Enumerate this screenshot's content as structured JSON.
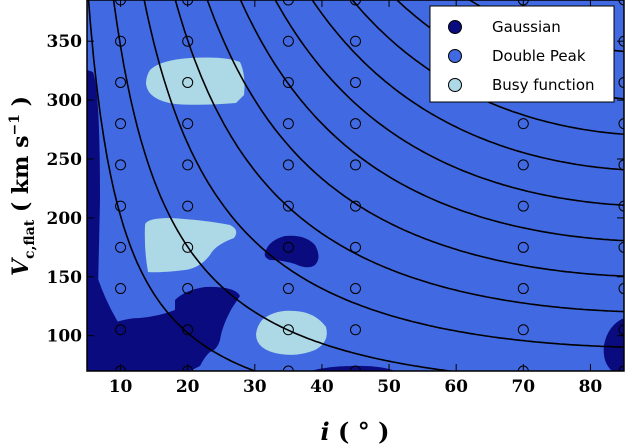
{
  "chart_data": {
    "type": "contour",
    "xlabel": "i ( ° )",
    "ylabel": "V_c,flat ( km s⁻¹ )",
    "xlim": [
      5,
      85
    ],
    "ylim": [
      70,
      385
    ],
    "xticks": [
      "10",
      "20",
      "30",
      "40",
      "50",
      "60",
      "70",
      "80"
    ],
    "yticks": [
      "100",
      "150",
      "200",
      "250",
      "300",
      "350"
    ],
    "legend": {
      "placement": "top-right",
      "entries": [
        {
          "name": "Gaussian",
          "color": "#0b0b80"
        },
        {
          "name": "Double Peak",
          "color": "#4169e1"
        },
        {
          "name": "Busy function",
          "color": "#add8e6"
        }
      ]
    },
    "colors": {
      "gaussian": "#0b0b80",
      "double_peak": "#4169e1",
      "busy": "#add8e6"
    },
    "sample_points": {
      "x": [
        10,
        20,
        35,
        45,
        70,
        85
      ],
      "y": [
        70,
        105,
        140,
        175,
        210,
        245,
        280,
        315,
        350,
        385
      ]
    },
    "curves_constant": [
      35,
      60,
      90,
      120,
      150,
      180,
      210,
      240,
      270,
      300,
      340
    ]
  }
}
